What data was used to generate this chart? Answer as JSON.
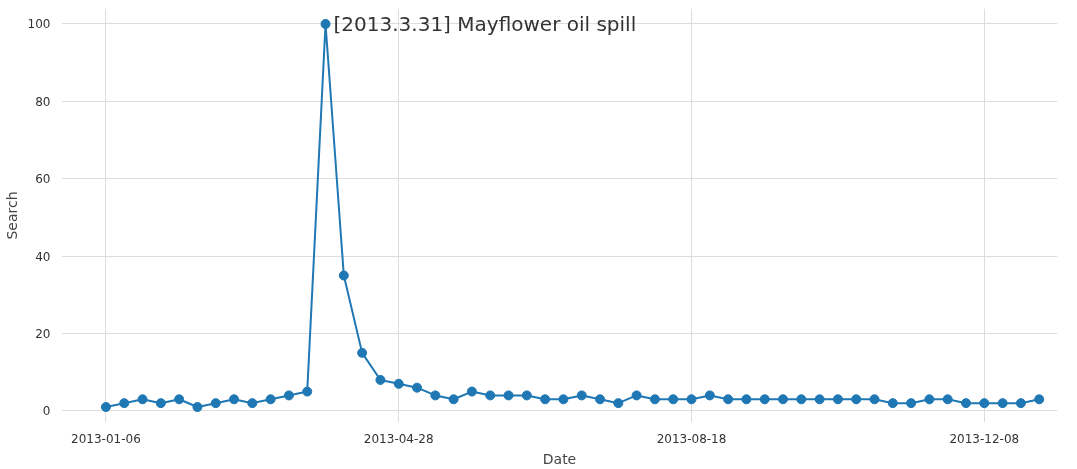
{
  "chart_data": {
    "type": "line",
    "xlabel": "Date",
    "ylabel": "Search",
    "x": [
      "2013-01-06",
      "2013-01-13",
      "2013-01-20",
      "2013-01-27",
      "2013-02-03",
      "2013-02-10",
      "2013-02-17",
      "2013-02-24",
      "2013-03-03",
      "2013-03-10",
      "2013-03-17",
      "2013-03-24",
      "2013-03-31",
      "2013-04-07",
      "2013-04-14",
      "2013-04-21",
      "2013-04-28",
      "2013-05-05",
      "2013-05-12",
      "2013-05-19",
      "2013-05-26",
      "2013-06-02",
      "2013-06-09",
      "2013-06-16",
      "2013-06-23",
      "2013-06-30",
      "2013-07-07",
      "2013-07-14",
      "2013-07-21",
      "2013-07-28",
      "2013-08-04",
      "2013-08-11",
      "2013-08-18",
      "2013-08-25",
      "2013-09-01",
      "2013-09-08",
      "2013-09-15",
      "2013-09-22",
      "2013-09-29",
      "2013-10-06",
      "2013-10-13",
      "2013-10-20",
      "2013-10-27",
      "2013-11-03",
      "2013-11-10",
      "2013-11-17",
      "2013-11-24",
      "2013-12-01",
      "2013-12-08",
      "2013-12-15",
      "2013-12-22",
      "2013-12-29"
    ],
    "series": [
      {
        "color": "#1f77b4",
        "values": [
          1,
          2,
          3,
          2,
          3,
          1,
          2,
          3,
          2,
          3,
          4,
          5,
          100,
          35,
          15,
          8,
          7,
          6,
          4,
          3,
          5,
          4,
          4,
          4,
          3,
          3,
          4,
          3,
          2,
          4,
          3,
          3,
          3,
          4,
          3,
          3,
          3,
          3,
          3,
          3,
          3,
          3,
          3,
          2,
          2,
          3,
          3,
          2,
          2,
          2,
          2,
          3
        ]
      }
    ],
    "xlim": [
      "2012-12-20",
      "2014-01-05"
    ],
    "xticks": [
      "2013-01-06",
      "2013-04-28",
      "2013-08-18",
      "2013-12-08"
    ],
    "ylim": [
      -3,
      104
    ],
    "yticks": [
      0,
      20,
      40,
      60,
      80,
      100
    ],
    "grid": true,
    "marker": "circle",
    "line_style": "solid",
    "annotations": [
      {
        "text": "[2013.3.31] Mayflower oil spill",
        "x": "2013-03-31",
        "y": 100
      }
    ]
  }
}
